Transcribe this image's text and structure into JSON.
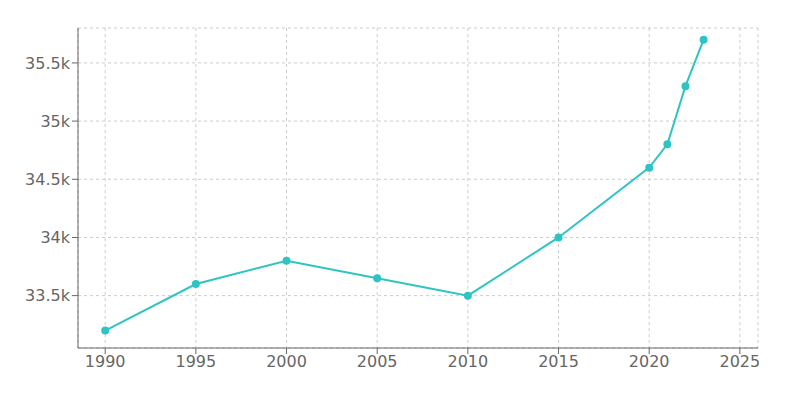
{
  "chart_data": {
    "type": "line",
    "x": [
      1990,
      1995,
      2000,
      2005,
      2010,
      2015,
      2020,
      2021,
      2022,
      2023
    ],
    "values": [
      33200,
      33600,
      33800,
      33650,
      33500,
      34000,
      34600,
      34800,
      35300,
      35700
    ],
    "color": "#2EC4C4",
    "marker": "circle",
    "xlim": [
      1988.5,
      2026
    ],
    "ylim": [
      33050,
      35800
    ],
    "xticks": [
      1990,
      1995,
      2000,
      2005,
      2010,
      2015,
      2020,
      2025
    ],
    "yticks": [
      {
        "value": 33500,
        "label": "33.5k"
      },
      {
        "value": 34000,
        "label": "34k"
      },
      {
        "value": 34500,
        "label": "34.5k"
      },
      {
        "value": 35000,
        "label": "35k"
      },
      {
        "value": 35500,
        "label": "35.5k"
      }
    ],
    "grid": true
  }
}
